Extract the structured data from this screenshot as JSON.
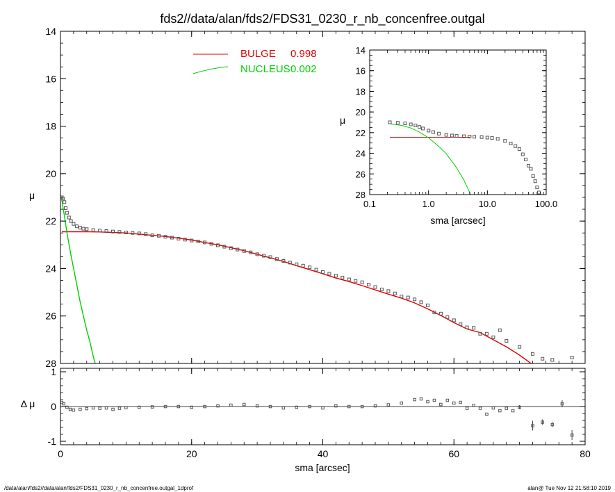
{
  "title": "fds2//data/alan/fds2/FDS31_0230_r_nb_concenfree.outgal",
  "footer": {
    "left": "/data/alan/fds2//data/alan/fds2/FDS31_0230_r_nb_concenfree.outgal_1dprof",
    "right": "alan@  Tue Nov 12 21:58:10 2019"
  },
  "colors": {
    "bulge": "#e00000",
    "nucleus": "#00d000",
    "data": "#555555",
    "axis": "#000000"
  },
  "chart_data": [
    {
      "id": "main",
      "type": "scatter",
      "ylabel": "μ",
      "xlim": [
        0,
        80
      ],
      "ylim": [
        28,
        14
      ],
      "y_inverted": true,
      "yticks": [
        "14",
        "16",
        "18",
        "20",
        "22",
        "24",
        "26",
        "28"
      ],
      "legend": {
        "placement": "top-center",
        "entries": [
          {
            "label": "BULGE",
            "value": "0.998",
            "color": "#e00000"
          },
          {
            "label": "NUCLEUS",
            "value": "0.002",
            "color": "#00d000"
          }
        ]
      },
      "series": [
        {
          "name": "BULGE",
          "style": "line",
          "color": "#e00000",
          "x": [
            0.2,
            2,
            4,
            6,
            8,
            10,
            12,
            14,
            16,
            18,
            20,
            22,
            24,
            26,
            28,
            30,
            32,
            34,
            36,
            38,
            40,
            42,
            44,
            46,
            48,
            50,
            52,
            54,
            56,
            58,
            60,
            62,
            64,
            66,
            68,
            70,
            72
          ],
          "y": [
            22.45,
            22.45,
            22.45,
            22.46,
            22.48,
            22.5,
            22.55,
            22.6,
            22.65,
            22.72,
            22.8,
            22.9,
            23.0,
            23.12,
            23.25,
            23.4,
            23.55,
            23.7,
            23.88,
            24.05,
            24.22,
            24.4,
            24.55,
            24.72,
            24.9,
            25.08,
            25.25,
            25.45,
            25.7,
            25.98,
            26.28,
            26.55,
            26.7,
            27.0,
            27.3,
            27.65,
            28.05
          ]
        },
        {
          "name": "NUCLEUS",
          "style": "line",
          "color": "#00d000",
          "x": [
            0.2,
            0.5,
            1.0,
            1.5,
            2.0,
            2.5,
            3.0,
            3.5,
            4.0,
            4.5,
            5.0,
            5.3
          ],
          "y": [
            21.1,
            21.6,
            22.5,
            23.3,
            24.0,
            24.7,
            25.4,
            26.0,
            26.6,
            27.1,
            27.7,
            28.0
          ]
        },
        {
          "name": "data",
          "style": "markers",
          "color": "#555555",
          "x": [
            0.2,
            0.4,
            0.6,
            0.8,
            1.0,
            1.3,
            1.6,
            2.0,
            2.5,
            3.0,
            3.5,
            4.0,
            5,
            6,
            7,
            8,
            9,
            10,
            11,
            12,
            13,
            14,
            15,
            16,
            17,
            18,
            19,
            20,
            21,
            22,
            23,
            24,
            25,
            26,
            27,
            28,
            29,
            30,
            31,
            32,
            33,
            34,
            35,
            36,
            37,
            38,
            39,
            40,
            41,
            42,
            43,
            44,
            45,
            46,
            47,
            48,
            49,
            50,
            51,
            52,
            53,
            54,
            55,
            56,
            57,
            58,
            59,
            60,
            61,
            62,
            63,
            64,
            65,
            66,
            67,
            68,
            70,
            72,
            73.5,
            75,
            78
          ],
          "y": [
            21.0,
            21.05,
            21.2,
            21.45,
            21.65,
            21.85,
            22.0,
            22.12,
            22.22,
            22.28,
            22.32,
            22.34,
            22.38,
            22.4,
            22.42,
            22.44,
            22.46,
            22.48,
            22.5,
            22.52,
            22.55,
            22.6,
            22.62,
            22.66,
            22.7,
            22.74,
            22.78,
            22.82,
            22.86,
            22.9,
            22.96,
            23.02,
            23.08,
            23.14,
            23.2,
            23.26,
            23.32,
            23.4,
            23.46,
            23.52,
            23.6,
            23.68,
            23.75,
            23.82,
            23.88,
            23.95,
            24.05,
            24.15,
            24.22,
            24.3,
            24.38,
            24.46,
            24.52,
            24.58,
            24.68,
            24.78,
            24.88,
            24.95,
            25.05,
            25.18,
            25.22,
            25.3,
            25.42,
            25.55,
            25.85,
            25.9,
            26.05,
            26.18,
            26.35,
            26.48,
            26.5,
            26.75,
            26.75,
            26.9,
            26.6,
            27.05,
            27.3,
            27.6,
            27.8,
            27.85,
            27.75
          ]
        }
      ]
    },
    {
      "id": "inset",
      "type": "line",
      "ylabel": "μ",
      "xlabel": "sma [arcsec]",
      "x_scale": "log",
      "xlim": [
        0.1,
        100
      ],
      "xticks": [
        "0.1",
        "1.0",
        "10.0",
        "100.0"
      ],
      "ylim": [
        28,
        14
      ],
      "y_inverted": true,
      "yticks": [
        "14",
        "16",
        "18",
        "20",
        "22",
        "24",
        "26",
        "28"
      ],
      "series": [
        {
          "name": "BULGE",
          "style": "line",
          "color": "#e00000",
          "x": [
            0.22,
            0.5,
            1,
            2,
            3,
            4,
            5
          ],
          "y": [
            22.45,
            22.45,
            22.45,
            22.45,
            22.45,
            22.45,
            22.45
          ]
        },
        {
          "name": "NUCLEUS",
          "style": "line",
          "color": "#00d000",
          "x": [
            0.22,
            0.35,
            0.5,
            0.7,
            1.0,
            1.5,
            2.0,
            3.0,
            4.0,
            5.2
          ],
          "y": [
            21.15,
            21.3,
            21.55,
            21.95,
            22.5,
            23.35,
            24.05,
            25.4,
            26.6,
            28.0
          ]
        },
        {
          "name": "data",
          "style": "markers",
          "color": "#555555",
          "x": [
            0.22,
            0.3,
            0.4,
            0.5,
            0.6,
            0.7,
            0.8,
            1.0,
            1.2,
            1.5,
            2.0,
            2.5,
            3.0,
            4.0,
            5.0,
            6.0,
            8.0,
            10.0,
            12.0,
            15.0,
            20.0,
            25.0,
            30.0,
            35.0,
            40.0,
            45.0,
            50.0,
            55.0,
            60.0,
            65.0,
            70.0,
            75.0
          ],
          "y": [
            21.0,
            21.05,
            21.1,
            21.2,
            21.3,
            21.45,
            21.6,
            21.8,
            21.95,
            22.1,
            22.22,
            22.28,
            22.32,
            22.35,
            22.38,
            22.4,
            22.43,
            22.48,
            22.52,
            22.6,
            22.8,
            23.05,
            23.3,
            23.6,
            24.1,
            24.6,
            25.2,
            25.5,
            26.2,
            26.7,
            27.3,
            27.8
          ]
        }
      ]
    },
    {
      "id": "residual",
      "type": "scatter",
      "ylabel": "Δ μ",
      "xlabel": "sma [arcsec]",
      "xlim": [
        0,
        80
      ],
      "xticks": [
        "0",
        "20",
        "40",
        "60",
        "80"
      ],
      "ylim": [
        -1.1,
        1.1
      ],
      "yticks": [
        "1",
        "0",
        "-1"
      ],
      "series": [
        {
          "name": "residual",
          "style": "markers",
          "color": "#555555",
          "x": [
            0.2,
            0.5,
            1,
            1.5,
            2,
            3,
            4,
            5,
            6,
            7,
            8,
            9,
            10,
            12,
            14,
            16,
            18,
            20,
            22,
            24,
            26,
            28,
            30,
            32,
            34,
            36,
            38,
            40,
            42,
            44,
            46,
            48,
            50,
            52,
            54,
            55,
            56,
            57,
            58,
            59,
            60,
            61,
            62,
            63,
            64,
            65,
            66,
            67,
            68,
            69,
            70,
            72,
            73.5,
            75,
            76.5,
            78
          ],
          "y": [
            0.12,
            0.08,
            -0.02,
            -0.08,
            -0.1,
            -0.08,
            -0.06,
            -0.04,
            -0.05,
            -0.04,
            -0.08,
            -0.05,
            -0.03,
            -0.02,
            -0.01,
            0.0,
            0.0,
            -0.02,
            0.0,
            0.02,
            0.04,
            0.06,
            0.02,
            0.0,
            -0.04,
            -0.02,
            0.0,
            -0.04,
            0.02,
            0.0,
            0.0,
            0.02,
            0.05,
            0.1,
            0.2,
            0.22,
            0.14,
            0.18,
            0.06,
            0.18,
            0.1,
            0.12,
            -0.05,
            0.03,
            -0.05,
            -0.22,
            -0.04,
            -0.12,
            -0.05,
            -0.12,
            -0.02,
            -0.55,
            -0.45,
            -0.52,
            0.08,
            -0.82
          ],
          "err": [
            0,
            0,
            0,
            0,
            0,
            0,
            0,
            0,
            0,
            0,
            0,
            0,
            0,
            0,
            0,
            0,
            0,
            0,
            0,
            0,
            0,
            0,
            0,
            0,
            0,
            0,
            0,
            0,
            0,
            0,
            0,
            0,
            0,
            0,
            0,
            0,
            0,
            0,
            0,
            0,
            0,
            0,
            0,
            0,
            0,
            0,
            0,
            0,
            0,
            0,
            0.06,
            0.14,
            0.08,
            0.07,
            0.1,
            0.14
          ]
        }
      ]
    }
  ]
}
